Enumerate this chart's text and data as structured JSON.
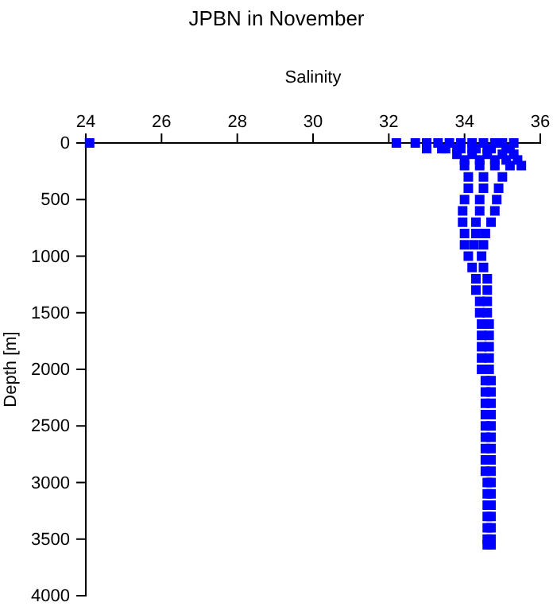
{
  "chart_data": {
    "type": "scatter",
    "title": "JPBN in November",
    "xlabel": "Salinity",
    "ylabel": "Depth [m]",
    "xlim": [
      24,
      36
    ],
    "xticks": [
      24,
      26,
      28,
      30,
      32,
      34,
      36
    ],
    "ylim": [
      4000,
      0
    ],
    "yticks": [
      0,
      500,
      1000,
      1500,
      2000,
      2500,
      3000,
      3500,
      4000
    ],
    "marker": "square",
    "series": [
      {
        "color": "#0000ff",
        "x": [
          24.1,
          32.2,
          32.7,
          33.0,
          33.3,
          33.6,
          33.9,
          34.2,
          34.5,
          34.8,
          35.0,
          35.3,
          33.0,
          33.4,
          33.8,
          34.2,
          34.6,
          35.1,
          33.5,
          33.9,
          34.3,
          34.7,
          35.2,
          33.8,
          34.2,
          34.6,
          35.0,
          35.3,
          34.0,
          34.4,
          34.8,
          35.1,
          35.4,
          34.0,
          34.4,
          34.8,
          35.2,
          35.5,
          34.1,
          34.5,
          35.0,
          34.1,
          34.5,
          34.9,
          34.0,
          34.4,
          34.85,
          33.95,
          34.4,
          34.8,
          33.95,
          34.3,
          34.7,
          34.0,
          34.3,
          34.55,
          34.0,
          34.25,
          34.5,
          34.1,
          34.45,
          34.2,
          34.5,
          34.3,
          34.6,
          34.3,
          34.6,
          34.4,
          34.6,
          34.4,
          34.6,
          34.45,
          34.65,
          34.45,
          34.65,
          34.45,
          34.65,
          34.45,
          34.65,
          34.45,
          34.65,
          34.55,
          34.7,
          34.55,
          34.7,
          34.55,
          34.7,
          34.55,
          34.7,
          34.55,
          34.7,
          34.55,
          34.7,
          34.55,
          34.7,
          34.55,
          34.7,
          34.55,
          34.7,
          34.6,
          34.7,
          34.6,
          34.7,
          34.6,
          34.7,
          34.6,
          34.7,
          34.6,
          34.7,
          34.6,
          34.7,
          34.6,
          34.7
        ],
        "values": [
          0,
          0,
          0,
          0,
          0,
          0,
          0,
          0,
          0,
          0,
          0,
          0,
          50,
          50,
          50,
          50,
          50,
          50,
          50,
          50,
          50,
          50,
          50,
          100,
          100,
          100,
          100,
          100,
          150,
          150,
          150,
          150,
          150,
          200,
          200,
          200,
          200,
          200,
          300,
          300,
          300,
          400,
          400,
          400,
          500,
          500,
          500,
          600,
          600,
          600,
          700,
          700,
          700,
          800,
          800,
          800,
          900,
          900,
          900,
          1000,
          1000,
          1100,
          1100,
          1200,
          1200,
          1300,
          1300,
          1400,
          1400,
          1500,
          1500,
          1600,
          1600,
          1700,
          1700,
          1800,
          1800,
          1900,
          1900,
          2000,
          2000,
          2100,
          2100,
          2200,
          2200,
          2300,
          2300,
          2400,
          2400,
          2500,
          2500,
          2600,
          2600,
          2700,
          2700,
          2800,
          2800,
          2900,
          2900,
          3000,
          3000,
          3100,
          3100,
          3200,
          3200,
          3300,
          3300,
          3400,
          3400,
          3500,
          3500,
          3550,
          3550
        ]
      }
    ]
  }
}
